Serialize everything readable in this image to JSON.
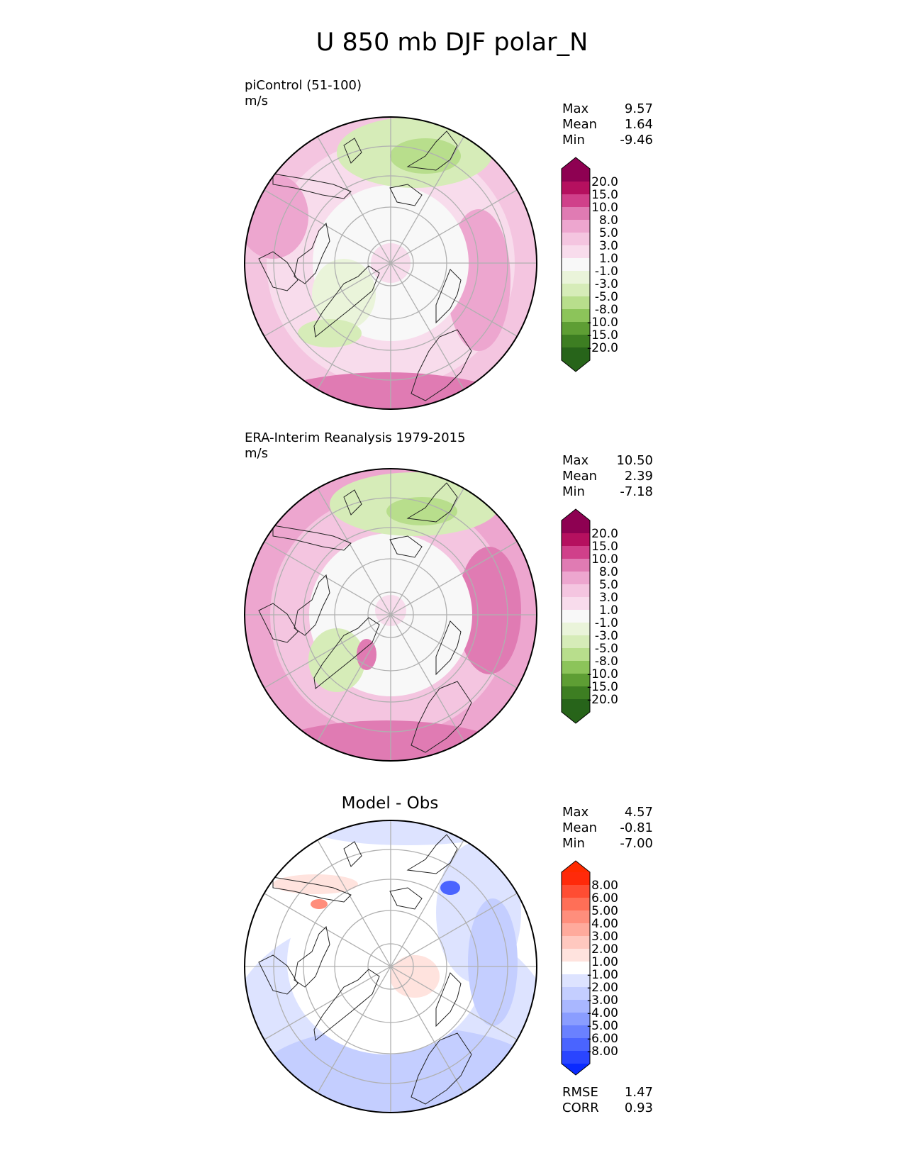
{
  "figure": {
    "title": "U 850 mb DJF polar_N"
  },
  "panels": [
    {
      "id": "test",
      "label": "piControl (51-100)",
      "units": "m/s",
      "stats": {
        "max_label": "Max",
        "max": "9.57",
        "mean_label": "Mean",
        "mean": "1.64",
        "min_label": "Min",
        "min": "-9.46"
      }
    },
    {
      "id": "reference",
      "label": "ERA-Interim Reanalysis 1979-2015",
      "units": "m/s",
      "stats": {
        "max_label": "Max",
        "max": "10.50",
        "mean_label": "Mean",
        "mean": "2.39",
        "min_label": "Min",
        "min": "-7.18"
      }
    },
    {
      "id": "difference",
      "title": "Model - Obs",
      "stats": {
        "max_label": "Max",
        "max": "4.57",
        "mean_label": "Mean",
        "mean": "-0.81",
        "min_label": "Min",
        "min": "-7.00"
      },
      "metrics": {
        "rmse_label": "RMSE",
        "rmse": "1.47",
        "corr_label": "CORR",
        "corr": "0.93"
      }
    }
  ],
  "colorbars": {
    "field": {
      "labels": [
        "20.0",
        "15.0",
        "10.0",
        "8.0",
        "5.0",
        "3.0",
        "1.0",
        "-1.0",
        "-3.0",
        "-5.0",
        "-8.0",
        "-10.0",
        "-15.0",
        "-20.0"
      ],
      "colors": [
        "#8e0152",
        "#b5105f",
        "#d0408a",
        "#e07bb3",
        "#eda6cf",
        "#f4c5e0",
        "#f8dcec",
        "#f8f8f8",
        "#eaf4da",
        "#d6ecb8",
        "#b8de8c",
        "#8cc45a",
        "#5e9e34",
        "#3d7e22",
        "#27641a"
      ],
      "over": "#8e0152",
      "under": "#276419"
    },
    "diff": {
      "labels": [
        "8.00",
        "6.00",
        "5.00",
        "4.00",
        "3.00",
        "2.00",
        "1.00",
        "-1.00",
        "-2.00",
        "-3.00",
        "-4.00",
        "-5.00",
        "-6.00",
        "-8.00"
      ],
      "colors": [
        "#ff2a0a",
        "#ff4d33",
        "#ff6f57",
        "#ff8e7c",
        "#ffaa9c",
        "#ffc8bf",
        "#ffe3de",
        "#ffffff",
        "#dde3ff",
        "#c4ceff",
        "#a9b7ff",
        "#8a9dff",
        "#6a81ff",
        "#4a64ff",
        "#2a45ff"
      ],
      "over": "#ff2a00",
      "under": "#0a2aff"
    }
  }
}
